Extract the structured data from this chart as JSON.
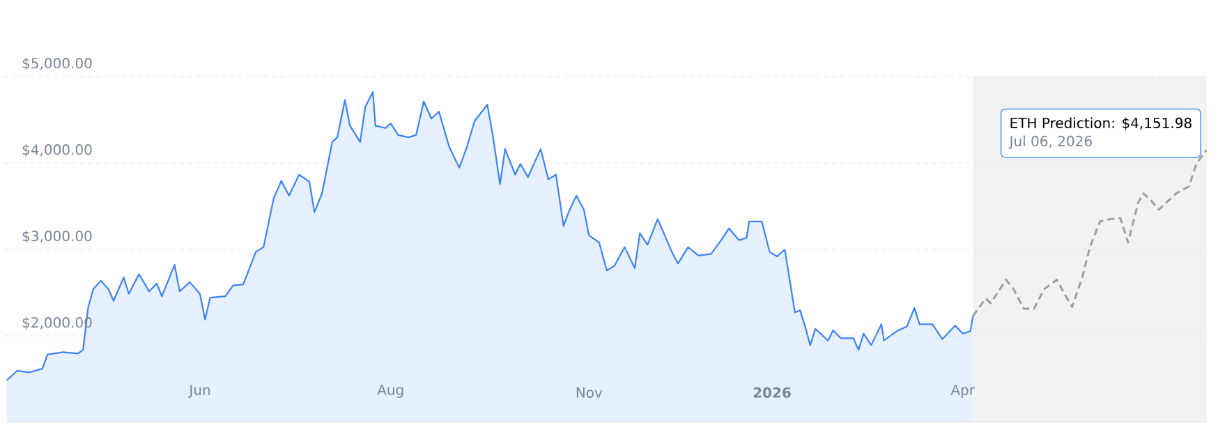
{
  "chart_data": {
    "type": "area",
    "xlim": [
      "2025-03-20",
      "2026-07-06"
    ],
    "xticks": [
      {
        "value": "2025-06-05",
        "label": "Jun"
      },
      {
        "value": "2025-08-19",
        "label": "Aug"
      },
      {
        "value": "2025-11-05",
        "label": "Nov"
      },
      {
        "value": "2026-01-16",
        "label": "**2026**"
      },
      {
        "value": "2026-04-01",
        "label": "Apr"
      }
    ],
    "ylim": [
      1000,
      5000
    ],
    "yticks": [
      {
        "value": 2000,
        "label": "$2,000.00"
      },
      {
        "value": 3000,
        "label": "$3,000.00"
      },
      {
        "value": 4000,
        "label": "$4,000.00"
      },
      {
        "value": 5000,
        "label": "$5,000.00"
      }
    ],
    "grid": "y",
    "bands": [
      {
        "axis": "x",
        "from": "2026-04-05",
        "to": "2026-07-06",
        "label": null,
        "color": "#f2f2f2"
      }
    ],
    "annotations": [
      {
        "text": "ETH Prediction: $4,151.98",
        "x": "2026-07-06",
        "y": 4151.98
      },
      "Jul 06, 2026"
    ],
    "series": [
      {
        "color": "#3b82f6",
        "x": [
          "2025-03-21",
          "2025-03-25",
          "2025-03-30",
          "2025-04-04",
          "2025-04-06",
          "2025-04-12",
          "2025-04-18",
          "2025-04-20",
          "2025-04-22",
          "2025-04-24",
          "2025-04-27",
          "2025-04-30",
          "2025-05-02",
          "2025-05-06",
          "2025-05-08",
          "2025-05-12",
          "2025-05-16",
          "2025-05-19",
          "2025-05-21",
          "2025-05-26",
          "2025-05-28",
          "2025-06-01",
          "2025-06-05",
          "2025-06-07",
          "2025-06-09",
          "2025-06-15",
          "2025-06-18",
          "2025-06-22",
          "2025-06-27",
          "2025-06-30",
          "2025-07-04",
          "2025-07-07",
          "2025-07-10",
          "2025-07-14",
          "2025-07-18",
          "2025-07-20",
          "2025-07-23",
          "2025-07-27",
          "2025-07-29",
          "2025-08-01",
          "2025-08-03",
          "2025-08-07",
          "2025-08-09",
          "2025-08-12",
          "2025-08-13",
          "2025-08-17",
          "2025-08-19",
          "2025-08-22",
          "2025-08-26",
          "2025-08-29",
          "2025-09-01",
          "2025-09-04",
          "2025-09-07",
          "2025-09-11",
          "2025-09-15",
          "2025-09-18",
          "2025-09-21",
          "2025-09-26",
          "2025-09-28",
          "2025-10-01",
          "2025-10-03",
          "2025-10-07",
          "2025-10-09",
          "2025-10-12",
          "2025-10-17",
          "2025-10-20",
          "2025-10-23",
          "2025-10-26",
          "2025-10-28",
          "2025-10-31",
          "2025-11-03",
          "2025-11-05",
          "2025-11-09",
          "2025-11-12",
          "2025-11-15",
          "2025-11-17",
          "2025-11-19",
          "2025-11-23",
          "2025-11-25",
          "2025-11-28",
          "2025-12-02",
          "2025-12-08",
          "2025-12-10",
          "2025-12-14",
          "2025-12-18",
          "2025-12-23",
          "2025-12-27",
          "2025-12-30",
          "2026-01-03",
          "2026-01-06",
          "2026-01-07",
          "2026-01-12",
          "2026-01-15",
          "2026-01-18",
          "2026-01-21",
          "2026-01-25",
          "2026-01-27",
          "2026-01-29",
          "2026-01-31",
          "2026-02-02",
          "2026-02-07",
          "2026-02-09",
          "2026-02-12",
          "2026-02-17",
          "2026-02-19",
          "2026-02-21",
          "2026-02-24",
          "2026-02-28",
          "2026-03-01",
          "2026-03-06",
          "2026-03-10",
          "2026-03-13",
          "2026-03-15",
          "2026-03-20",
          "2026-03-24",
          "2026-03-29",
          "2026-04-01",
          "2026-04-04",
          "2026-04-05"
        ],
        "values": [
          1486,
          1595,
          1578,
          1620,
          1784,
          1811,
          1795,
          1838,
          2324,
          2540,
          2638,
          2540,
          2405,
          2676,
          2486,
          2714,
          2514,
          2605,
          2459,
          2822,
          2514,
          2622,
          2486,
          2189,
          2443,
          2459,
          2584,
          2595,
          2973,
          3027,
          3595,
          3795,
          3622,
          3865,
          3784,
          3432,
          3649,
          4243,
          4297,
          4730,
          4432,
          4243,
          4649,
          4822,
          4432,
          4405,
          4459,
          4324,
          4297,
          4324,
          4714,
          4514,
          4595,
          4189,
          3946,
          4189,
          4486,
          4676,
          4351,
          3757,
          4162,
          3865,
          3989,
          3838,
          4162,
          3811,
          3865,
          3270,
          3432,
          3622,
          3459,
          3162,
          3081,
          2757,
          2811,
          2919,
          3027,
          2784,
          3189,
          3054,
          3351,
          2946,
          2838,
          3027,
          2930,
          2946,
          3108,
          3243,
          3108,
          3135,
          3324,
          3324,
          2973,
          2919,
          3000,
          2270,
          2297,
          2108,
          1892,
          2081,
          1946,
          2065,
          1973,
          1973,
          1838,
          2027,
          1892,
          2135,
          1946,
          2054,
          2108,
          2324,
          2135,
          2135,
          1962,
          2119,
          2027,
          2054,
          2227
        ]
      },
      {
        "type": "line",
        "color": "#9e9e9e",
        "line_style": "dashed",
        "x": [
          "2026-04-05",
          "2026-04-10",
          "2026-04-12",
          "2026-04-18",
          "2026-04-21",
          "2026-04-25",
          "2026-04-29",
          "2026-05-03",
          "2026-05-08",
          "2026-05-11",
          "2026-05-14",
          "2026-05-18",
          "2026-05-21",
          "2026-05-25",
          "2026-05-29",
          "2026-06-02",
          "2026-06-05",
          "2026-06-09",
          "2026-06-11",
          "2026-06-14",
          "2026-06-17",
          "2026-06-20",
          "2026-06-24",
          "2026-06-29",
          "2026-07-02",
          "2026-07-06"
        ],
        "values": [
          2227,
          2432,
          2378,
          2649,
          2541,
          2314,
          2314,
          2541,
          2649,
          2486,
          2335,
          2676,
          3027,
          3324,
          3351,
          3362,
          3081,
          3541,
          3649,
          3568,
          3459,
          3541,
          3649,
          3730,
          4000,
          4151.98
        ]
      }
    ]
  }
}
